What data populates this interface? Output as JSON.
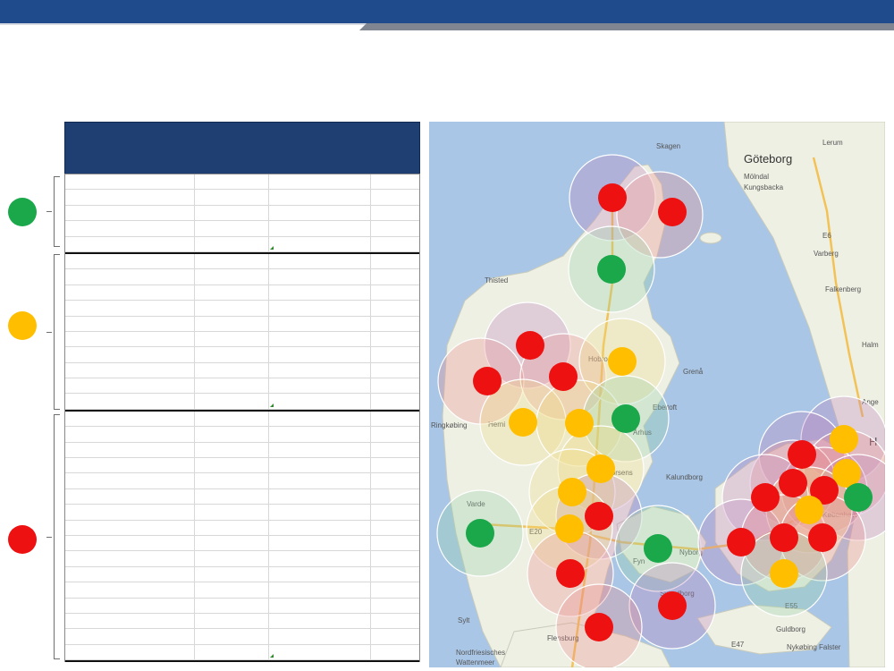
{
  "legend": {
    "status_colors": {
      "green": "#1aa84a",
      "amber": "#ffbf00",
      "red": "#ee1111"
    }
  },
  "map": {
    "labels": {
      "goteborg": "Göteborg",
      "skagen": "Skagen",
      "molndal": "Mölndal",
      "kungsbacka": "Kungsbacka",
      "lerum": "Lerum",
      "varberg": "Varberg",
      "falkenberg": "Falkenberg",
      "halmstad": "Halm",
      "angelholm": "Ange",
      "thisted": "Thisted",
      "hobro": "Hobro",
      "grenaa": "Grenå",
      "ebeltoft": "Ebeltoft",
      "ringkobing": "Ringkøbing",
      "herning": "Herni",
      "aarhus": "Århus",
      "horsens": "Horsens",
      "varde": "Varde",
      "kalundborg": "Kalundborg",
      "nyborg": "Nyborg",
      "fyn": "Fyn",
      "kobenhavn": "København",
      "sylt": "Sylt",
      "nordfriesisches": "Nordfriesisches",
      "wattenmeer": "Wattenmeer",
      "flensburg": "Flensburg",
      "svendborg": "Svendborg",
      "nykobing": "Nykøbing Falster",
      "guldborg": "Guldborg",
      "e47": "E47",
      "e55": "E55",
      "e6": "E6",
      "e20": "E20",
      "ho": "H"
    }
  }
}
